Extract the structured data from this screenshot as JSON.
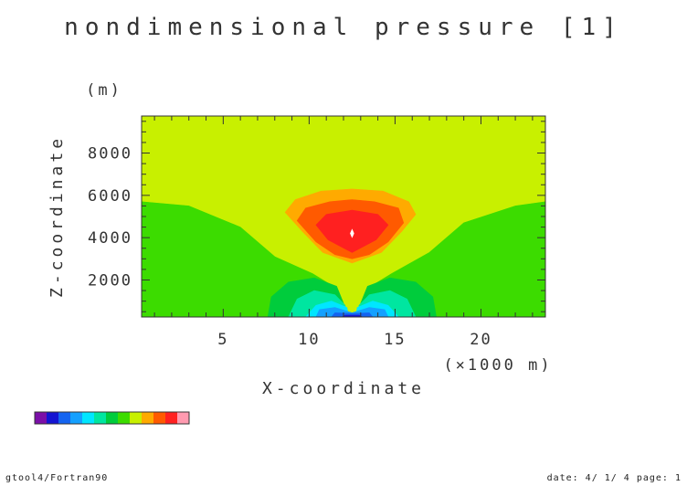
{
  "chart_data": {
    "type": "heatmap",
    "title": "nondimensional pressure [1]",
    "xlabel": "X-coordinate",
    "ylabel": "Z-coordinate",
    "x_unit": "(×1000 m)",
    "y_unit": "(m)",
    "xlim": [
      0.25,
      23.75
    ],
    "ylim": [
      250,
      9750
    ],
    "x_ticks": [
      5,
      10,
      15,
      20
    ],
    "x_tick_labels": [
      "5",
      "10",
      "15",
      "20"
    ],
    "y_ticks": [
      2000,
      4000,
      6000,
      8000
    ],
    "y_tick_labels": [
      "2000",
      "4000",
      "6000",
      "8000"
    ],
    "grid": false,
    "levels_note": "13 filled contour levels, low (purple) to high (pink)",
    "colorbar_colors": [
      "#7b0fa8",
      "#1414d2",
      "#1464f0",
      "#14a0ff",
      "#00e6ff",
      "#00e6a0",
      "#00cc3c",
      "#3cdc00",
      "#c8f000",
      "#ffaa00",
      "#ff5a00",
      "#ff2020",
      "#ff9ab0"
    ],
    "fields": [
      {
        "level": 8,
        "color": "#c8f000",
        "region": "background above ~5700 m and center column"
      },
      {
        "level": 7,
        "color": "#3cdc00",
        "region": "lower flanks x<11 and x>14, below ~5700 m"
      },
      {
        "level": 9,
        "color": "#ffaa00",
        "region": "anomaly ring x 8–16, z 2800–6200"
      },
      {
        "level": 10,
        "color": "#ff5a00",
        "region": "x 9–15.5, z 3200–5600"
      },
      {
        "level": 11,
        "color": "#ff2020",
        "region": "core x 10.5–14.5, z 3700–5100, peak at (12.5, 4200)"
      },
      {
        "level": 6,
        "color": "#00cc3c",
        "region": "lower lobes x 7.5–17.5, z <2100"
      },
      {
        "level": 5,
        "color": "#00e6a0",
        "region": "lower lobes x 9–16, z <1500"
      },
      {
        "level": 4,
        "color": "#00e6ff",
        "region": "lower lobes x 10–15, z <1000"
      },
      {
        "level": 3,
        "color": "#14a0ff",
        "region": "x 10.5–14.5, z <700"
      },
      {
        "level": 2,
        "color": "#1464f0",
        "region": "x 11.5–13.5, z <500"
      },
      {
        "level": 1,
        "color": "#1414d2",
        "region": "minimum near (12.5, 300)"
      }
    ]
  },
  "footer": {
    "left": "gtool4/Fortran90",
    "right": "date: 4/ 1/ 4 page: 1"
  }
}
